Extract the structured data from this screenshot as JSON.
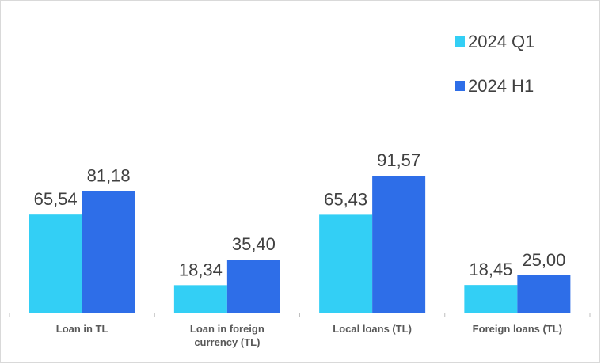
{
  "chart_data": {
    "type": "bar",
    "categories": [
      "Loan in TL",
      "Loan in foreign currency (TL)",
      "Local loans (TL)",
      "Foreign loans (TL)"
    ],
    "series": [
      {
        "name": "2024 Q1",
        "color": "#33cff5",
        "values": [
          65.54,
          18.34,
          65.43,
          18.45
        ],
        "value_labels": [
          "65,54",
          "18,34",
          "65,43",
          "18,45"
        ]
      },
      {
        "name": "2024 H1",
        "color": "#2e6ee8",
        "values": [
          81.18,
          35.4,
          91.57,
          25.0
        ],
        "value_labels": [
          "81,18",
          "35,40",
          "91,57",
          "25,00"
        ]
      }
    ],
    "legend": "top-right"
  }
}
